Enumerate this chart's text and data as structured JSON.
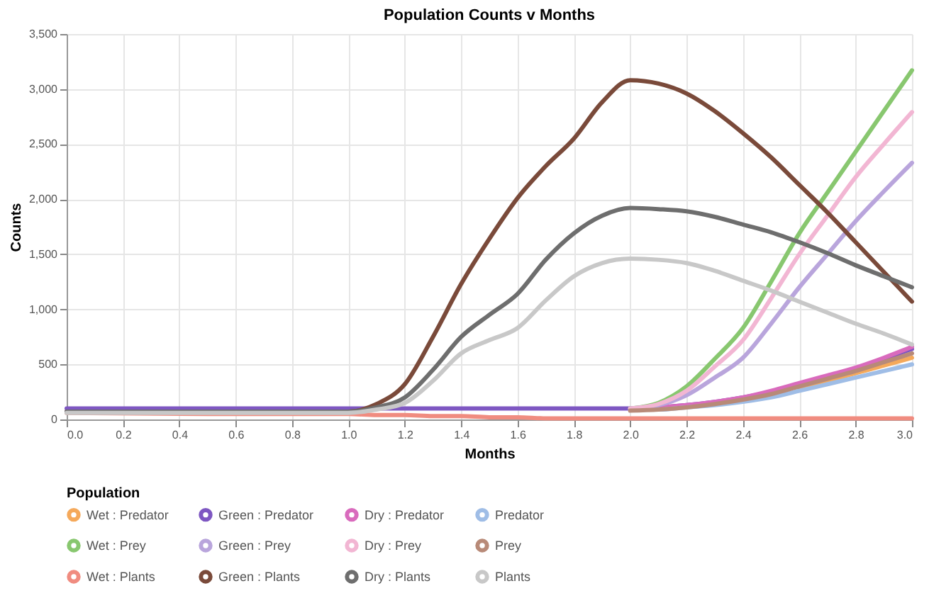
{
  "chart_data": {
    "type": "line",
    "title": "Population Counts v Months",
    "xlabel": "Months",
    "ylabel": "Counts",
    "legend_title": "Population",
    "x": [
      0,
      0.5,
      1.0,
      1.1,
      1.2,
      1.3,
      1.4,
      1.5,
      1.6,
      1.7,
      1.8,
      1.9,
      2.0,
      2.1,
      2.2,
      2.3,
      2.4,
      2.5,
      2.6,
      2.7,
      2.8,
      2.9,
      3.0
    ],
    "xlim": [
      0,
      3
    ],
    "xticks": [
      {
        "value": 0,
        "label": "0.0"
      },
      0.2,
      0.4,
      0.6,
      0.8,
      {
        "value": 1,
        "label": "1.0"
      },
      1.2,
      1.4,
      1.6,
      1.8,
      {
        "value": 2,
        "label": "2.0"
      },
      2.2,
      2.4,
      2.6,
      2.8,
      {
        "value": 3,
        "label": "3.0"
      }
    ],
    "ylim": [
      0,
      3500
    ],
    "yticks": [
      0,
      500,
      {
        "value": 1000,
        "label": "1,000"
      },
      {
        "value": 1500,
        "label": "1,500"
      },
      {
        "value": 2000,
        "label": "2,000"
      },
      {
        "value": 2500,
        "label": "2,500"
      },
      {
        "value": 3000,
        "label": "3,000"
      },
      {
        "value": 3500,
        "label": "3,500"
      }
    ],
    "grid": true,
    "legend": "bottom",
    "marker": "none",
    "line_style": "solid",
    "series": [
      {
        "name": "Wet : Predator",
        "color": "#f5a95b",
        "values": [
          null,
          null,
          null,
          null,
          null,
          null,
          null,
          null,
          null,
          null,
          null,
          null,
          null,
          null,
          null,
          null,
          null,
          null,
          290,
          350,
          420,
          490,
          560
        ]
      },
      {
        "name": "Green : Predator",
        "color": "#7e57c2",
        "values": [
          100,
          100,
          100,
          100,
          100,
          100,
          100,
          100,
          100,
          100,
          100,
          100,
          100,
          110,
          130,
          160,
          200,
          250,
          320,
          390,
          460,
          550,
          640
        ]
      },
      {
        "name": "Dry : Predator",
        "color": "#d96bbd",
        "values": [
          null,
          null,
          null,
          null,
          null,
          null,
          null,
          null,
          null,
          null,
          null,
          null,
          100,
          110,
          130,
          160,
          200,
          260,
          330,
          400,
          470,
          560,
          660
        ]
      },
      {
        "name": "Predator",
        "color": "#9fbde6",
        "values": [
          null,
          null,
          null,
          null,
          null,
          null,
          null,
          null,
          null,
          null,
          null,
          null,
          90,
          90,
          110,
          130,
          160,
          200,
          260,
          320,
          380,
          440,
          500
        ]
      },
      {
        "name": "Wet : Prey",
        "color": "#88c76f",
        "values": [
          null,
          null,
          null,
          null,
          null,
          null,
          null,
          null,
          null,
          null,
          null,
          null,
          100,
          150,
          300,
          550,
          830,
          1250,
          1690,
          2060,
          2430,
          2800,
          3170
        ]
      },
      {
        "name": "Green : Prey",
        "color": "#b9a5dc",
        "values": [
          null,
          null,
          null,
          null,
          null,
          null,
          null,
          null,
          null,
          null,
          null,
          null,
          100,
          130,
          220,
          380,
          560,
          870,
          1200,
          1500,
          1800,
          2070,
          2330
        ]
      },
      {
        "name": "Dry : Prey",
        "color": "#f2b6d3",
        "values": [
          null,
          null,
          null,
          null,
          null,
          null,
          null,
          null,
          null,
          null,
          null,
          null,
          100,
          140,
          260,
          480,
          720,
          1100,
          1500,
          1850,
          2200,
          2500,
          2790
        ]
      },
      {
        "name": "Prey",
        "color": "#b88a78",
        "values": [
          null,
          null,
          null,
          null,
          null,
          null,
          null,
          null,
          null,
          null,
          null,
          null,
          80,
          90,
          110,
          140,
          180,
          230,
          300,
          370,
          440,
          520,
          600
        ]
      },
      {
        "name": "Wet : Plants",
        "color": "#f08c80",
        "values": [
          60,
          50,
          50,
          40,
          40,
          30,
          30,
          20,
          20,
          10,
          10,
          10,
          10,
          10,
          10,
          10,
          10,
          10,
          10,
          10,
          10,
          10,
          10
        ]
      },
      {
        "name": "Green : Plants",
        "color": "#7a4a3a",
        "values": [
          70,
          70,
          70,
          140,
          320,
          750,
          1230,
          1640,
          2010,
          2300,
          2550,
          2880,
          3080,
          3050,
          2960,
          2800,
          2600,
          2380,
          2130,
          1880,
          1610,
          1340,
          1070
        ]
      },
      {
        "name": "Dry : Plants",
        "color": "#6e6e6e",
        "values": [
          70,
          70,
          70,
          110,
          200,
          450,
          750,
          950,
          1140,
          1450,
          1690,
          1850,
          1920,
          1910,
          1890,
          1840,
          1770,
          1700,
          1610,
          1510,
          1400,
          1300,
          1200
        ]
      },
      {
        "name": "Plants",
        "color": "#c8c8c8",
        "values": [
          60,
          60,
          60,
          90,
          150,
          350,
          600,
          720,
          830,
          1080,
          1300,
          1420,
          1460,
          1450,
          1420,
          1350,
          1260,
          1170,
          1070,
          970,
          870,
          780,
          680
        ]
      }
    ]
  }
}
